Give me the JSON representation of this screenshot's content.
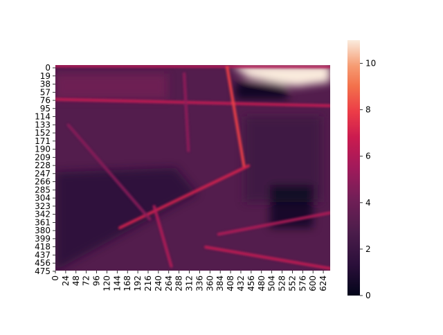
{
  "chart_data": {
    "type": "heatmap",
    "title": "",
    "xlabel": "",
    "ylabel": "",
    "colormap": "rocket",
    "grid": false,
    "value_range": [
      0,
      11
    ],
    "x_tick_labels": [
      "0",
      "24",
      "48",
      "72",
      "96",
      "120",
      "144",
      "168",
      "192",
      "216",
      "240",
      "264",
      "288",
      "312",
      "336",
      "360",
      "384",
      "408",
      "432",
      "456",
      "480",
      "504",
      "528",
      "552",
      "576",
      "600",
      "624"
    ],
    "x_tick_values": [
      0,
      24,
      48,
      72,
      96,
      120,
      144,
      168,
      192,
      216,
      240,
      264,
      288,
      312,
      336,
      360,
      384,
      408,
      432,
      456,
      480,
      504,
      528,
      552,
      576,
      600,
      624
    ],
    "x_range": [
      0,
      640
    ],
    "y_tick_labels": [
      "0",
      "19",
      "38",
      "57",
      "76",
      "95",
      "114",
      "133",
      "152",
      "171",
      "190",
      "209",
      "228",
      "247",
      "266",
      "285",
      "304",
      "323",
      "342",
      "361",
      "380",
      "399",
      "418",
      "437",
      "456",
      "475"
    ],
    "y_tick_values": [
      0,
      19,
      38,
      57,
      76,
      95,
      114,
      133,
      152,
      171,
      190,
      209,
      228,
      247,
      266,
      285,
      304,
      323,
      342,
      361,
      380,
      399,
      418,
      437,
      456,
      475
    ],
    "y_range": [
      0,
      480
    ],
    "colorbar": {
      "ticks": [
        0,
        2,
        4,
        6,
        8,
        10
      ],
      "tick_labels": [
        "0",
        "2",
        "4",
        "6",
        "8",
        "10"
      ],
      "range": [
        0,
        11
      ]
    },
    "approx_regions": [
      {
        "label": "background",
        "value": 3.0
      },
      {
        "label": "dark-lower-left",
        "value": 1.2
      },
      {
        "label": "dark-right-center",
        "value": 2.0
      },
      {
        "label": "white-top-right",
        "value": 11.0
      },
      {
        "label": "black-pockets",
        "value": 0.0
      }
    ],
    "approx_bright_streaks": [
      {
        "from": [
          0,
          2
        ],
        "to": [
          640,
          4
        ],
        "value": 6.0
      },
      {
        "from": [
          0,
          80
        ],
        "to": [
          640,
          95
        ],
        "value": 6.5
      },
      {
        "from": [
          400,
          5
        ],
        "to": [
          440,
          240
        ],
        "value": 8.0
      },
      {
        "from": [
          150,
          380
        ],
        "to": [
          450,
          235
        ],
        "value": 7.0
      },
      {
        "from": [
          380,
          395
        ],
        "to": [
          640,
          345
        ],
        "value": 6.0
      },
      {
        "from": [
          350,
          425
        ],
        "to": [
          640,
          475
        ],
        "value": 6.5
      },
      {
        "from": [
          230,
          330
        ],
        "to": [
          270,
          470
        ],
        "value": 6.0
      },
      {
        "from": [
          30,
          140
        ],
        "to": [
          220,
          360
        ],
        "value": 4.8
      },
      {
        "from": [
          300,
          20
        ],
        "to": [
          310,
          200
        ],
        "value": 5.0
      }
    ]
  }
}
